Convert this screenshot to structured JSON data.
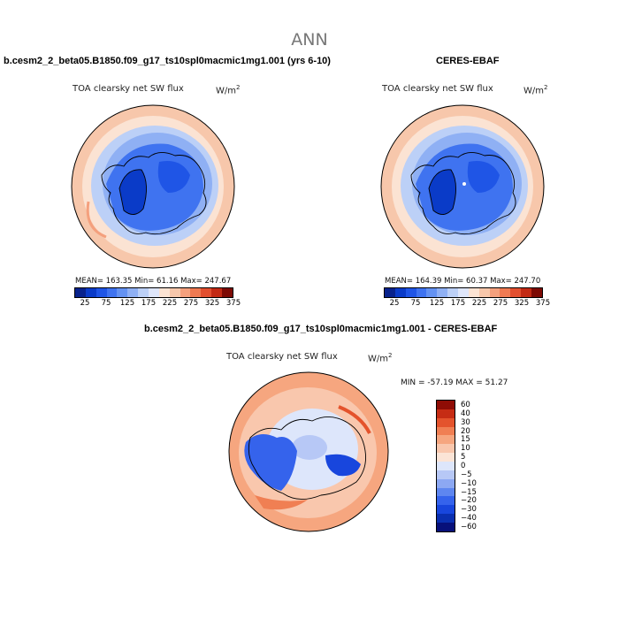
{
  "suptitle": "ANN",
  "colors": {
    "seq": [
      "#08228c",
      "#0a3bc8",
      "#1f55e6",
      "#3f73f0",
      "#6492f2",
      "#8fb0f4",
      "#bcd0f7",
      "#dfe6fa",
      "#fbe3d3",
      "#f7c7ab",
      "#f4a07d",
      "#ef7a52",
      "#e24f2f",
      "#c22a14",
      "#7d0a04"
    ],
    "diff": [
      "#07107a",
      "#0a2fb0",
      "#1846dd",
      "#3563ec",
      "#5e86f0",
      "#8ca8f3",
      "#b7c8f6",
      "#dde6fb",
      "#fbe4d6",
      "#f9c7ad",
      "#f6a67f",
      "#f07f53",
      "#e4532c",
      "#c62c14",
      "#8f0c05"
    ]
  },
  "panels": [
    {
      "title": "b.cesm2_2_beta05.B1850.f09_g17_ts10spl0macmic1mg1.001 (yrs 6-10)",
      "variable": "TOA clearsky net SW flux",
      "units_base": "W/m",
      "units_exp": "2",
      "stats": "MEAN= 163.35   Min=   61.16   Max= 247.67"
    },
    {
      "title": "CERES-EBAF",
      "variable": "TOA clearsky net SW flux",
      "units_base": "W/m",
      "units_exp": "2",
      "stats": "MEAN= 164.39   Min=   60.37   Max= 247.70"
    },
    {
      "title": "b.cesm2_2_beta05.B1850.f09_g17_ts10spl0macmic1mg1.001 - CERES-EBAF",
      "variable": "TOA clearsky net SW flux",
      "units_base": "W/m",
      "units_exp": "2",
      "stats": "MIN = -57.19  MAX =  51.27"
    }
  ],
  "chart_data": [
    {
      "type": "heatmap",
      "projection": "north polar stereographic",
      "title": "b.cesm2_2_beta05.B1850.f09_g17_ts10spl0macmic1mg1.001 (yrs 6-10)",
      "variable": "TOA clearsky net SW flux",
      "units": "W/m2",
      "mean": 163.35,
      "min": 61.16,
      "max": 247.67,
      "colorbar_levels": [
        25,
        50,
        75,
        100,
        125,
        150,
        175,
        200,
        225,
        250,
        275,
        300,
        325,
        350
      ],
      "colorbar_tick_labels": [
        "25",
        "75",
        "125",
        "175",
        "225",
        "275",
        "325",
        "375"
      ]
    },
    {
      "type": "heatmap",
      "projection": "north polar stereographic",
      "title": "CERES-EBAF",
      "variable": "TOA clearsky net SW flux",
      "units": "W/m2",
      "mean": 164.39,
      "min": 60.37,
      "max": 247.7,
      "colorbar_levels": [
        25,
        50,
        75,
        100,
        125,
        150,
        175,
        200,
        225,
        250,
        275,
        300,
        325,
        350
      ],
      "colorbar_tick_labels": [
        "25",
        "75",
        "125",
        "175",
        "225",
        "275",
        "325",
        "375"
      ]
    },
    {
      "type": "heatmap",
      "projection": "north polar stereographic",
      "title": "b.cesm2_2_beta05.B1850.f09_g17_ts10spl0macmic1mg1.001 - CERES-EBAF",
      "variable": "TOA clearsky net SW flux",
      "units": "W/m2",
      "min": -57.19,
      "max": 51.27,
      "colorbar_levels": [
        60,
        40,
        30,
        20,
        15,
        10,
        5,
        0,
        -5,
        -10,
        -15,
        -20,
        -30,
        -40,
        -60
      ],
      "colorbar_tick_labels": [
        "60",
        "40",
        "30",
        "20",
        "15",
        "10",
        "5",
        "0",
        "−5",
        "−10",
        "−15",
        "−20",
        "−30",
        "−40",
        "−60"
      ]
    }
  ]
}
